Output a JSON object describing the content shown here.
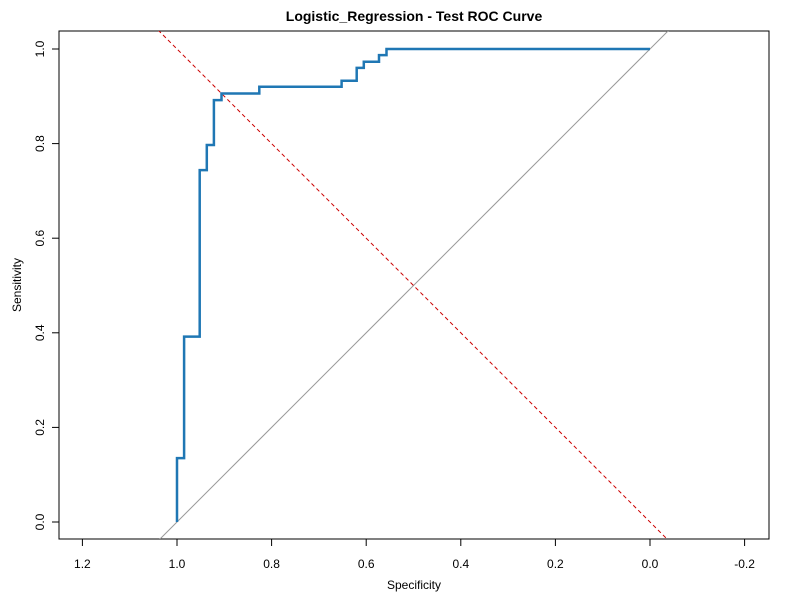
{
  "chart_data": {
    "type": "line",
    "title": "Logistic_Regression - Test ROC Curve",
    "xlabel": "Specificity",
    "ylabel": "Sensitivity",
    "xlim": [
      1.2,
      -0.2
    ],
    "ylim": [
      0.0,
      1.0
    ],
    "x_axis_reversed": true,
    "grid": false,
    "x_ticks": [
      "1.2",
      "1.0",
      "0.8",
      "0.6",
      "0.4",
      "0.2",
      "0.0",
      "-0.2"
    ],
    "y_ticks": [
      "0.0",
      "0.2",
      "0.4",
      "0.6",
      "0.8",
      "1.0"
    ],
    "series": [
      {
        "role": "roc-curve",
        "color": "#1f77b4",
        "specificity": [
          1.0,
          1.0,
          0.985,
          0.985,
          0.985,
          0.985,
          0.952,
          0.952,
          0.937,
          0.937,
          0.922,
          0.922,
          0.906,
          0.906,
          0.826,
          0.826,
          0.652,
          0.652,
          0.62,
          0.62,
          0.605,
          0.605,
          0.573,
          0.573,
          0.557,
          0.557,
          0.0
        ],
        "sensitivity": [
          0.0,
          0.135,
          0.135,
          0.255,
          0.255,
          0.392,
          0.392,
          0.744,
          0.744,
          0.797,
          0.797,
          0.892,
          0.892,
          0.906,
          0.906,
          0.92,
          0.92,
          0.933,
          0.933,
          0.96,
          0.96,
          0.973,
          0.973,
          0.987,
          0.987,
          1.0,
          1.0
        ]
      }
    ],
    "reference_lines": [
      {
        "role": "diagonal-chance-line",
        "color": "#999999",
        "style": "solid",
        "specificity": [
          1.04,
          -0.04
        ],
        "sensitivity": [
          -0.04,
          1.04
        ]
      },
      {
        "role": "threshold-guide-line",
        "color": "#cc0000",
        "style": "dashed",
        "specificity": [
          1.04,
          -0.04
        ],
        "sensitivity": [
          1.04,
          -0.04
        ]
      }
    ]
  }
}
